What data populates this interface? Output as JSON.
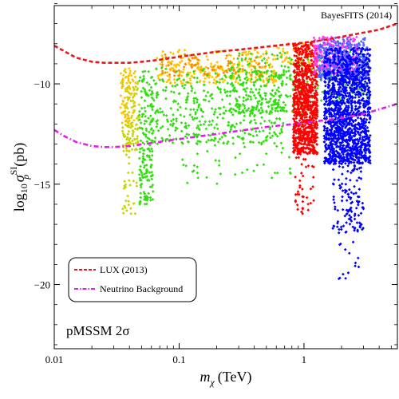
{
  "chart_data": {
    "type": "scatter",
    "corner_label": "BayesFITS (2014)",
    "tag_label": "pMSSM 2σ",
    "ylabel": {
      "base": "log",
      "sub": "10",
      "sigma": "σ",
      "sup": "SI",
      "psub": "p",
      "unit": "(pb)"
    },
    "xlabel": {
      "m": "m",
      "sub": "χ",
      "unit": "(TeV)"
    },
    "x_scale": "log",
    "xlim": [
      0.01,
      5.6
    ],
    "ylim": [
      -23.2,
      -6.1
    ],
    "x_ticks": [
      {
        "value": 0.01,
        "label": "0.01"
      },
      {
        "value": 0.1,
        "label": "0.1"
      },
      {
        "value": 1,
        "label": "1"
      }
    ],
    "y_ticks": [
      {
        "value": -10,
        "label": "−10"
      },
      {
        "value": -15,
        "label": "−15"
      },
      {
        "value": -20,
        "label": "−20"
      }
    ],
    "grid": false,
    "legend_position": "bottom-left",
    "legend": [
      {
        "label": "LUX (2013)",
        "color": "#e8181a",
        "style": "dashed"
      },
      {
        "label": "Neutrino Background",
        "color": "#e020e0",
        "style": "dashdot"
      }
    ],
    "lines": [
      {
        "name": "LUX (2013)",
        "color": "#e8181a",
        "x": [
          0.01,
          0.015,
          0.02,
          0.025,
          0.03,
          0.04,
          0.05,
          0.07,
          0.1,
          0.15,
          0.2,
          0.3,
          0.5,
          0.7,
          1.0,
          1.5,
          2.0,
          3.0,
          4.0,
          5.6
        ],
        "y": [
          -8.1,
          -8.7,
          -8.9,
          -8.95,
          -8.95,
          -8.95,
          -8.9,
          -8.8,
          -8.65,
          -8.5,
          -8.4,
          -8.3,
          -8.15,
          -8.05,
          -7.95,
          -7.8,
          -7.65,
          -7.45,
          -7.3,
          -7.0
        ]
      },
      {
        "name": "Neutrino Background",
        "color": "#e020e0",
        "x": [
          0.01,
          0.012,
          0.015,
          0.02,
          0.025,
          0.03,
          0.04,
          0.06,
          0.1,
          0.2,
          0.5,
          1.0,
          2.0,
          3.0,
          5.6
        ],
        "y": [
          -12.3,
          -12.6,
          -12.9,
          -13.1,
          -13.15,
          -13.15,
          -13.1,
          -12.95,
          -12.75,
          -12.5,
          -12.15,
          -11.95,
          -11.7,
          -11.5,
          -11.0
        ]
      }
    ],
    "series": [
      {
        "name": "",
        "color": "#c8d400",
        "clusters": [
          {
            "xmin": 0.035,
            "xmax": 0.048,
            "ymin": -13.4,
            "ymax": -9.3,
            "n": 130
          },
          {
            "xmin": 0.035,
            "xmax": 0.047,
            "ymin": -16.5,
            "ymax": -13.5,
            "n": 30
          }
        ]
      },
      {
        "name": "",
        "color": "#ffc200",
        "clusters": [
          {
            "xmin": 0.034,
            "xmax": 0.045,
            "ymin": -12.0,
            "ymax": -9.2,
            "n": 60
          },
          {
            "xmin": 0.065,
            "xmax": 0.6,
            "ymin": -10.0,
            "ymax": -8.3,
            "n": 260
          },
          {
            "xmin": 0.6,
            "xmax": 1.2,
            "ymin": -9.0,
            "ymax": -7.9,
            "n": 40
          }
        ]
      },
      {
        "name": "",
        "color": "#ff8a00",
        "clusters": [
          {
            "xmin": 0.07,
            "xmax": 0.5,
            "ymin": -9.6,
            "ymax": -8.5,
            "n": 90
          }
        ]
      },
      {
        "name": "",
        "color": "#33dd11",
        "clusters": [
          {
            "xmin": 0.048,
            "xmax": 0.062,
            "ymin": -16.0,
            "ymax": -9.3,
            "n": 170
          },
          {
            "xmin": 0.06,
            "xmax": 0.7,
            "ymin": -13.0,
            "ymax": -9.2,
            "n": 420
          },
          {
            "xmin": 0.25,
            "xmax": 1.3,
            "ymin": -11.5,
            "ymax": -8.4,
            "n": 260
          },
          {
            "xmin": 0.1,
            "xmax": 0.8,
            "ymin": -15.0,
            "ymax": -12.5,
            "n": 45
          },
          {
            "xmin": 1.3,
            "xmax": 3.4,
            "ymin": -11.0,
            "ymax": -8.3,
            "n": 90
          }
        ]
      },
      {
        "name": "",
        "color": "#ff0000",
        "clusters": [
          {
            "xmin": 0.82,
            "xmax": 1.28,
            "ymin": -13.5,
            "ymax": -7.9,
            "n": 900
          },
          {
            "xmin": 0.85,
            "xmax": 1.2,
            "ymin": -16.5,
            "ymax": -13.5,
            "n": 40
          }
        ]
      },
      {
        "name": "",
        "color": "#ff3cff",
        "clusters": [
          {
            "xmin": 1.2,
            "xmax": 2.7,
            "ymin": -9.5,
            "ymax": -7.6,
            "n": 280
          }
        ]
      },
      {
        "name": "",
        "color": "#5566ff",
        "clusters": [
          {
            "xmin": 1.3,
            "xmax": 3.2,
            "ymin": -9.8,
            "ymax": -7.7,
            "n": 320
          }
        ]
      },
      {
        "name": "",
        "color": "#0000ff",
        "clusters": [
          {
            "xmin": 1.45,
            "xmax": 3.4,
            "ymin": -14.0,
            "ymax": -8.2,
            "n": 1400
          },
          {
            "xmin": 1.7,
            "xmax": 3.0,
            "ymin": -17.5,
            "ymax": -14.0,
            "n": 120
          },
          {
            "xmin": 1.9,
            "xmax": 2.9,
            "ymin": -20.0,
            "ymax": -17.5,
            "n": 14
          }
        ]
      }
    ]
  }
}
